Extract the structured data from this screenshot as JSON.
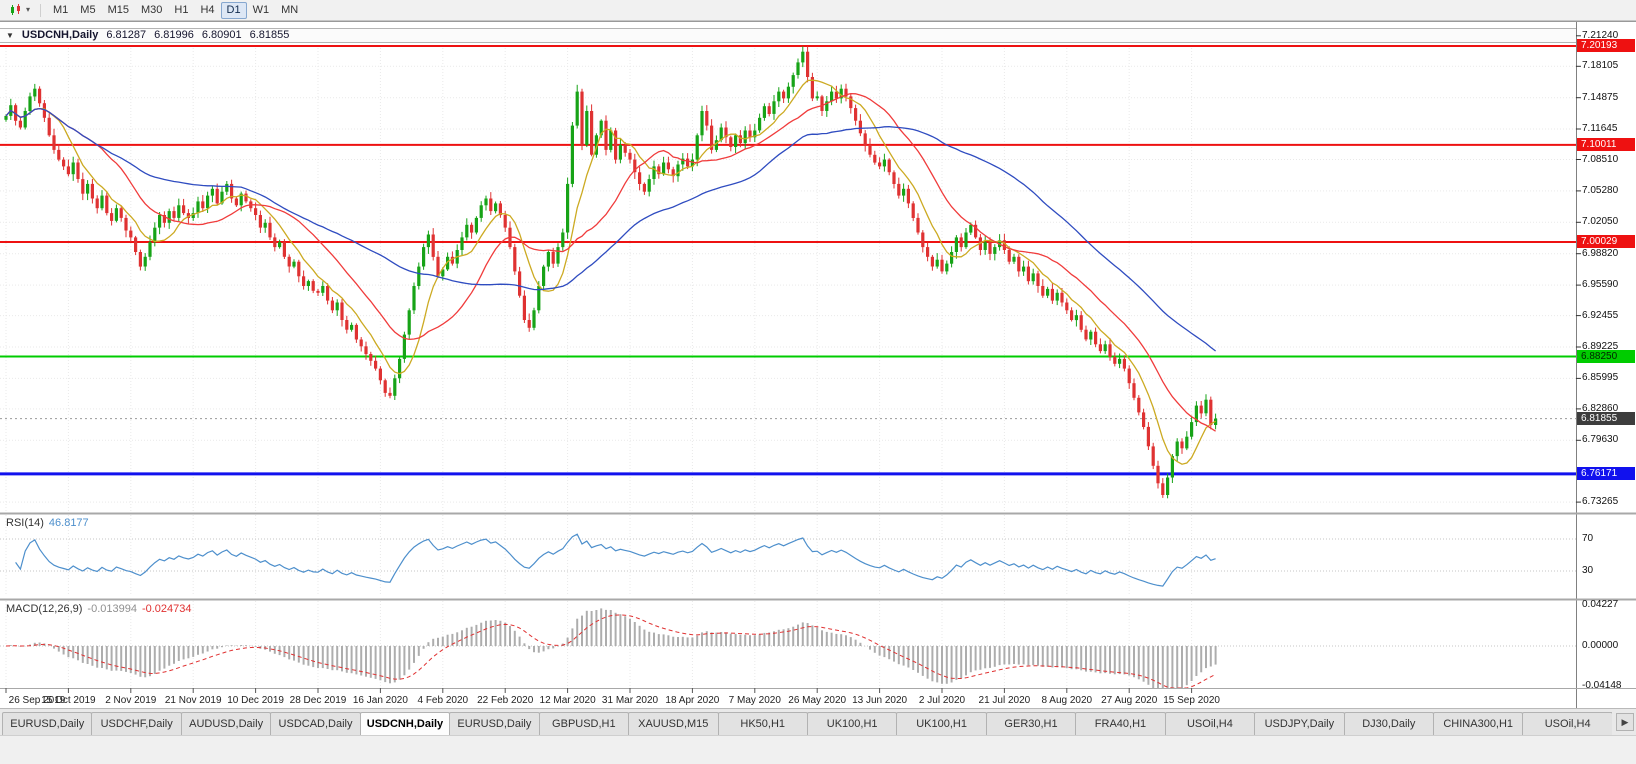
{
  "toolbar": {
    "chart_menu_caret": "▾",
    "timeframes": [
      "M1",
      "M5",
      "M15",
      "M30",
      "H1",
      "H4",
      "D1",
      "W1",
      "MN"
    ],
    "active_timeframe": "D1"
  },
  "info_bar": {
    "dropdown_icon": "▼",
    "symbol": "USDCNH,Daily",
    "open": "6.81287",
    "high": "6.81996",
    "low": "6.80901",
    "close": "6.81855"
  },
  "indicators": {
    "rsi": {
      "name": "RSI(14)",
      "value": "46.8177"
    },
    "macd": {
      "name": "MACD(12,26,9)",
      "value_main": "-0.013994",
      "value_signal": "-0.024734"
    }
  },
  "price_axis": {
    "ticks": [
      "7.21240",
      "7.18105",
      "7.14875",
      "7.11645",
      "7.08510",
      "7.05280",
      "7.02050",
      "6.98820",
      "6.95590",
      "6.92455",
      "6.89225",
      "6.85995",
      "6.82860",
      "6.79630",
      "6.73265"
    ],
    "badges": [
      {
        "label": "7.20193",
        "price": 7.20193,
        "bg": "#ee1111",
        "fg": "#ffffff",
        "name": "resistance-level-badge"
      },
      {
        "label": "7.10011",
        "price": 7.10011,
        "bg": "#ee1111",
        "fg": "#ffffff",
        "name": "resistance-level-badge"
      },
      {
        "label": "7.00029",
        "price": 7.00029,
        "bg": "#ee1111",
        "fg": "#ffffff",
        "name": "resistance-level-badge"
      },
      {
        "label": "6.88250",
        "price": 6.8825,
        "bg": "#00cc00",
        "fg": "#002200",
        "name": "support-level-badge"
      },
      {
        "label": "6.76171",
        "price": 6.76171,
        "bg": "#1111ee",
        "fg": "#ffffff",
        "name": "support-level-badge"
      },
      {
        "label": "6.81855",
        "price": 6.81855,
        "bg": "#3d3d3d",
        "fg": "#ffffff",
        "name": "current-price-badge"
      }
    ]
  },
  "rsi_axis": {
    "ticks": [
      {
        "label": "70",
        "value": 70
      },
      {
        "label": "30",
        "value": 30
      }
    ]
  },
  "macd_axis": {
    "ticks": [
      {
        "label": "0.04227",
        "value": 0.04227
      },
      {
        "label": "0.00000",
        "value": 0
      },
      {
        "label": "-0.04148",
        "value": -0.04148
      }
    ]
  },
  "tabs": {
    "scroll_right_icon": "▶",
    "items": [
      {
        "label": "EURUSD,Daily",
        "active": false
      },
      {
        "label": "USDCHF,Daily",
        "active": false
      },
      {
        "label": "AUDUSD,Daily",
        "active": false
      },
      {
        "label": "USDCAD,Daily",
        "active": false
      },
      {
        "label": "USDCNH,Daily",
        "active": true
      },
      {
        "label": "EURUSD,Daily",
        "active": false
      },
      {
        "label": "GBPUSD,H1",
        "active": false
      },
      {
        "label": "XAUUSD,M15",
        "active": false
      },
      {
        "label": "HK50,H1",
        "active": false
      },
      {
        "label": "UK100,H1",
        "active": false
      },
      {
        "label": "UK100,H1",
        "active": false
      },
      {
        "label": "GER30,H1",
        "active": false
      },
      {
        "label": "FRA40,H1",
        "active": false
      },
      {
        "label": "USOil,H4",
        "active": false
      },
      {
        "label": "USDJPY,Daily",
        "active": false
      },
      {
        "label": "DJ30,Daily",
        "active": false
      },
      {
        "label": "CHINA300,H1",
        "active": false
      },
      {
        "label": "USOil,H4",
        "active": false
      }
    ]
  },
  "chart_data": {
    "type": "candlestick",
    "title": "USDCNH,Daily",
    "ylim": [
      6.7225,
      7.206
    ],
    "x_labels": [
      "26 Sep 2019",
      "15 Oct 2019",
      "2 Nov 2019",
      "21 Nov 2019",
      "10 Dec 2019",
      "28 Dec 2019",
      "16 Jan 2020",
      "4 Feb 2020",
      "22 Feb 2020",
      "12 Mar 2020",
      "31 Mar 2020",
      "18 Apr 2020",
      "7 May 2020",
      "26 May 2020",
      "13 Jun 2020",
      "2 Jul 2020",
      "21 Jul 2020",
      "8 Aug 2020",
      "27 Aug 2020",
      "15 Sep 2020"
    ],
    "candles_per_label": 13,
    "current_price": 6.81855,
    "hlines": [
      {
        "price": 7.20193,
        "color": "#ee1111",
        "width": 2
      },
      {
        "price": 7.10011,
        "color": "#ee1111",
        "width": 2
      },
      {
        "price": 7.00029,
        "color": "#ee1111",
        "width": 2
      },
      {
        "price": 6.8825,
        "color": "#00cc00",
        "width": 2
      },
      {
        "price": 6.76171,
        "color": "#1111ee",
        "width": 3
      }
    ],
    "moving_averages": [
      {
        "period": 8,
        "color": "#ccaa22",
        "name": "MA8"
      },
      {
        "period": 20,
        "color": "#f03c3c",
        "name": "MA20"
      },
      {
        "period": 50,
        "color": "#2f4cc0",
        "name": "MA50"
      }
    ],
    "rsi": {
      "period": 14,
      "current": 46.8177,
      "levels": [
        70,
        30
      ],
      "range": [
        0,
        100
      ]
    },
    "macd": {
      "fast": 12,
      "slow": 26,
      "signal": 9,
      "current_macd": -0.013994,
      "current_signal": -0.024734,
      "range": [
        -0.04148,
        0.04227
      ]
    },
    "colors": {
      "up": "#17a317",
      "down": "#df3232",
      "rsi_line": "#4d8fcc",
      "macd_hist": "#adadad",
      "macd_signal": "#e03131",
      "grid": "#e9e9e9"
    },
    "closes": [
      7.13,
      7.141,
      7.125,
      7.118,
      7.135,
      7.15,
      7.158,
      7.143,
      7.128,
      7.11,
      7.095,
      7.085,
      7.078,
      7.07,
      7.082,
      7.065,
      7.05,
      7.06,
      7.045,
      7.035,
      7.048,
      7.03,
      7.022,
      7.035,
      7.025,
      7.012,
      7.005,
      6.99,
      6.975,
      6.985,
      7.0,
      7.015,
      7.028,
      7.02,
      7.032,
      7.025,
      7.038,
      7.03,
      7.025,
      7.03,
      7.042,
      7.035,
      7.048,
      7.055,
      7.04,
      7.052,
      7.06,
      7.045,
      7.038,
      7.05,
      7.042,
      7.035,
      7.028,
      7.015,
      7.02,
      7.005,
      6.995,
      7.0,
      6.985,
      6.975,
      6.98,
      6.965,
      6.955,
      6.96,
      6.95,
      6.948,
      6.955,
      6.94,
      6.93,
      6.938,
      6.92,
      6.91,
      6.915,
      6.9,
      6.893,
      6.885,
      6.878,
      6.87,
      6.858,
      6.845,
      6.842,
      6.86,
      6.88,
      6.905,
      6.93,
      6.955,
      6.975,
      6.995,
      7.008,
      6.985,
      6.965,
      6.972,
      6.985,
      6.978,
      6.992,
      7.005,
      7.018,
      7.01,
      7.025,
      7.038,
      7.045,
      7.032,
      7.04,
      7.028,
      7.015,
      6.995,
      6.97,
      6.945,
      6.92,
      6.912,
      6.93,
      6.955,
      6.975,
      6.99,
      6.978,
      6.995,
      7.01,
      7.06,
      7.12,
      7.155,
      7.1,
      7.135,
      7.09,
      7.11,
      7.125,
      7.095,
      7.115,
      7.085,
      7.1,
      7.092,
      7.085,
      7.072,
      7.06,
      7.052,
      7.065,
      7.078,
      7.07,
      7.082,
      7.075,
      7.068,
      7.08,
      7.086,
      7.078,
      7.085,
      7.11,
      7.135,
      7.12,
      7.095,
      7.105,
      7.118,
      7.108,
      7.098,
      7.11,
      7.102,
      7.115,
      7.108,
      7.115,
      7.128,
      7.14,
      7.132,
      7.145,
      7.155,
      7.148,
      7.16,
      7.172,
      7.185,
      7.196,
      7.17,
      7.148,
      7.15,
      7.135,
      7.145,
      7.155,
      7.148,
      7.158,
      7.15,
      7.138,
      7.125,
      7.112,
      7.1,
      7.09,
      7.082,
      7.078,
      7.085,
      7.072,
      7.06,
      7.048,
      7.055,
      7.04,
      7.025,
      7.01,
      6.995,
      6.985,
      6.975,
      6.982,
      6.97,
      6.978,
      6.99,
      7.005,
      6.995,
      7.01,
      7.018,
      7.005,
      6.992,
      7.0,
      6.988,
      6.995,
      7.002,
      6.992,
      6.98,
      6.985,
      6.97,
      6.975,
      6.96,
      6.968,
      6.955,
      6.945,
      6.952,
      6.94,
      6.948,
      6.938,
      6.93,
      6.92,
      6.925,
      6.91,
      6.9,
      6.908,
      6.895,
      6.888,
      6.895,
      6.882,
      6.875,
      6.88,
      6.87,
      6.855,
      6.84,
      6.825,
      6.81,
      6.79,
      6.77,
      6.752,
      6.74,
      6.758,
      6.78,
      6.795,
      6.788,
      6.8,
      6.815,
      6.832,
      6.824,
      6.838,
      6.812,
      6.8186
    ]
  }
}
